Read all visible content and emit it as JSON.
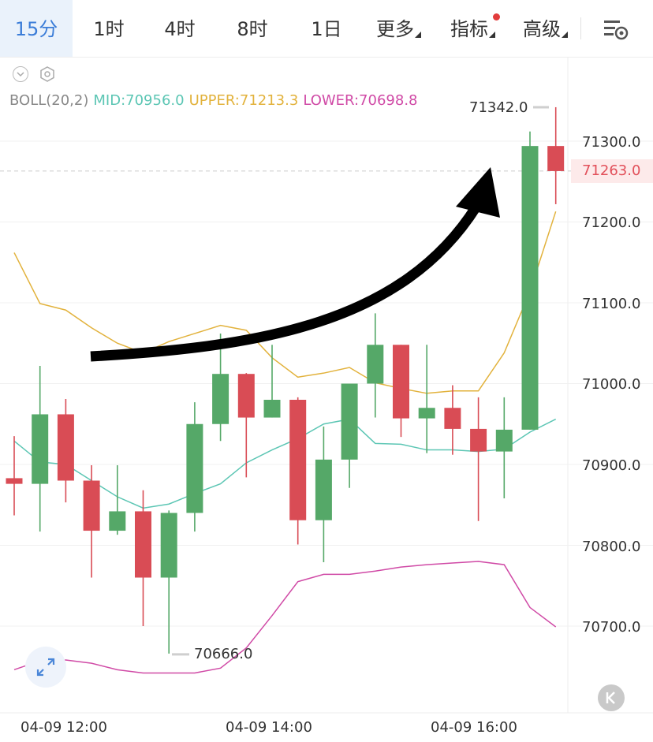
{
  "tabs": [
    {
      "label": "15分",
      "active": true
    },
    {
      "label": "1时"
    },
    {
      "label": "4时"
    },
    {
      "label": "8时"
    },
    {
      "label": "1日"
    },
    {
      "label": "更多",
      "caret": true
    },
    {
      "label": "指标",
      "caret": true,
      "badge": true
    },
    {
      "label": "高级",
      "caret": true
    }
  ],
  "toolbar": {
    "settings_icon": "chart-settings-icon",
    "collapse_icon": "chevron-down-icon",
    "gear_icon": "hexagon-gear-icon"
  },
  "indicator": {
    "name": "BOLL(20,2)",
    "mid": "MID:70956.0",
    "upper": "UPPER:71213.3",
    "lower": "LOWER:70698.8",
    "colors": {
      "mid": "#5cc6b4",
      "upper": "#e2b23c",
      "lower": "#d04aa6"
    }
  },
  "colors": {
    "up": "#55a868",
    "down": "#d94c55",
    "accent": "#3b7dd8",
    "price_line": "#cccccc"
  },
  "y_ticks": [
    "71300.0",
    "71200.0",
    "71100.0",
    "71000.0",
    "70900.0",
    "70800.0",
    "70700.0"
  ],
  "y_tick_values": [
    71300,
    71200,
    71100,
    71000,
    70900,
    70800,
    70700
  ],
  "current_price": {
    "label": "71263.0",
    "value": 71263
  },
  "high_marker": {
    "label": "71342.0",
    "value": 71342
  },
  "low_marker": {
    "label": "70666.0",
    "value": 70666
  },
  "x_labels": [
    "04-09 12:00",
    "04-09 14:00",
    "04-09 16:00"
  ],
  "chart_data": {
    "type": "candlestick",
    "interval": "15分",
    "candles": [
      {
        "o": 70883,
        "h": 70935,
        "l": 70837,
        "c": 70876
      },
      {
        "o": 70876,
        "h": 71022,
        "l": 70817,
        "c": 70962
      },
      {
        "o": 70962,
        "h": 70981,
        "l": 70853,
        "c": 70880
      },
      {
        "o": 70880,
        "h": 70899,
        "l": 70760,
        "c": 70818
      },
      {
        "o": 70818,
        "h": 70899,
        "l": 70813,
        "c": 70842
      },
      {
        "o": 70842,
        "h": 70868,
        "l": 70700,
        "c": 70760
      },
      {
        "o": 70760,
        "h": 70843,
        "l": 70666,
        "c": 70840
      },
      {
        "o": 70840,
        "h": 70977,
        "l": 70817,
        "c": 70950
      },
      {
        "o": 70950,
        "h": 71062,
        "l": 70929,
        "c": 71012
      },
      {
        "o": 71012,
        "h": 71013,
        "l": 70884,
        "c": 70958
      },
      {
        "o": 70958,
        "h": 71048,
        "l": 70958,
        "c": 70980
      },
      {
        "o": 70980,
        "h": 70983,
        "l": 70801,
        "c": 70831
      },
      {
        "o": 70831,
        "h": 70947,
        "l": 70779,
        "c": 70906
      },
      {
        "o": 70906,
        "h": 71000,
        "l": 70871,
        "c": 71000
      },
      {
        "o": 71000,
        "h": 71087,
        "l": 70958,
        "c": 71048
      },
      {
        "o": 71048,
        "h": 71048,
        "l": 70934,
        "c": 70957
      },
      {
        "o": 70957,
        "h": 71048,
        "l": 70914,
        "c": 70970
      },
      {
        "o": 70970,
        "h": 70998,
        "l": 70912,
        "c": 70944
      },
      {
        "o": 70944,
        "h": 70983,
        "l": 70830,
        "c": 70916
      },
      {
        "o": 70916,
        "h": 70983,
        "l": 70858,
        "c": 70943
      },
      {
        "o": 70943,
        "h": 71312,
        "l": 70943,
        "c": 71294
      },
      {
        "o": 71294,
        "h": 71342,
        "l": 71222,
        "c": 71263
      }
    ],
    "boll_mid": [
      70929,
      70903,
      70900,
      70880,
      70860,
      70846,
      70851,
      70864,
      70876,
      70902,
      70918,
      70932,
      70950,
      70956,
      70926,
      70925,
      70918,
      70918,
      70916,
      70919,
      70940,
      70956
    ],
    "boll_upper": [
      71162,
      71099,
      71091,
      71069,
      71050,
      71038,
      71052,
      71062,
      71072,
      71066,
      71032,
      71008,
      71013,
      71020,
      71001,
      70994,
      70988,
      70991,
      70991,
      71038,
      71114,
      71213
    ],
    "boll_lower": [
      70646,
      70657,
      70658,
      70654,
      70646,
      70642,
      70642,
      70642,
      70648,
      70673,
      70713,
      70755,
      70764,
      70764,
      70768,
      70773,
      70776,
      70778,
      70780,
      70776,
      70723,
      70699
    ],
    "ylim": [
      70610,
      71390
    ],
    "xlabel": "",
    "ylabel": "",
    "grid": true
  }
}
